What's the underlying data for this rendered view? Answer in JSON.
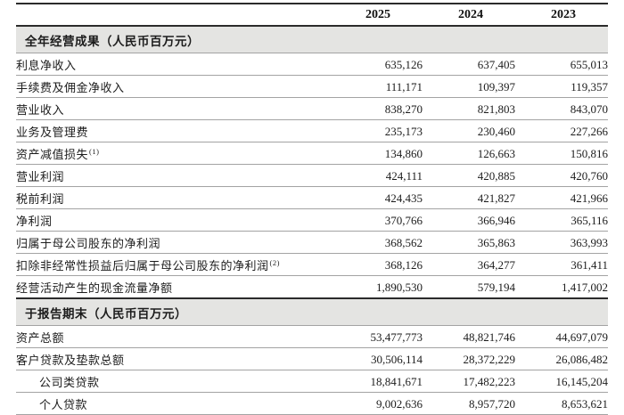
{
  "header": {
    "years": [
      "2025",
      "2024",
      "2023"
    ]
  },
  "sections": [
    {
      "title": "全年经营成果（人民币百万元）",
      "rows": [
        {
          "label": "利息净收入",
          "footnote": "",
          "indent": false,
          "values": [
            "635,126",
            "637,405",
            "655,013"
          ]
        },
        {
          "label": "手续费及佣金净收入",
          "footnote": "",
          "indent": false,
          "values": [
            "111,171",
            "109,397",
            "119,357"
          ]
        },
        {
          "label": "营业收入",
          "footnote": "",
          "indent": false,
          "values": [
            "838,270",
            "821,803",
            "843,070"
          ]
        },
        {
          "label": "业务及管理费",
          "footnote": "",
          "indent": false,
          "values": [
            "235,173",
            "230,460",
            "227,266"
          ]
        },
        {
          "label": "资产减值损失",
          "footnote": "(1)",
          "indent": false,
          "values": [
            "134,860",
            "126,663",
            "150,816"
          ]
        },
        {
          "label": "营业利润",
          "footnote": "",
          "indent": false,
          "values": [
            "424,111",
            "420,885",
            "420,760"
          ]
        },
        {
          "label": "税前利润",
          "footnote": "",
          "indent": false,
          "values": [
            "424,435",
            "421,827",
            "421,966"
          ]
        },
        {
          "label": "净利润",
          "footnote": "",
          "indent": false,
          "values": [
            "370,766",
            "366,946",
            "365,116"
          ]
        },
        {
          "label": "归属于母公司股东的净利润",
          "footnote": "",
          "indent": false,
          "values": [
            "368,562",
            "365,863",
            "363,993"
          ]
        },
        {
          "label": "扣除非经常性损益后归属于母公司股东的净利润",
          "footnote": "(2)",
          "indent": false,
          "values": [
            "368,126",
            "364,277",
            "361,411"
          ]
        },
        {
          "label": "经营活动产生的现金流量净额",
          "footnote": "",
          "indent": false,
          "values": [
            "1,890,530",
            "579,194",
            "1,417,002"
          ]
        }
      ]
    },
    {
      "title": "于报告期末（人民币百万元）",
      "rows": [
        {
          "label": "资产总额",
          "footnote": "",
          "indent": false,
          "values": [
            "53,477,773",
            "48,821,746",
            "44,697,079"
          ]
        },
        {
          "label": "客户贷款及垫款总额",
          "footnote": "",
          "indent": false,
          "values": [
            "30,506,114",
            "28,372,229",
            "26,086,482"
          ]
        },
        {
          "label": "公司类贷款",
          "footnote": "",
          "indent": true,
          "values": [
            "18,841,671",
            "17,482,223",
            "16,145,204"
          ]
        },
        {
          "label": "个人贷款",
          "footnote": "",
          "indent": true,
          "values": [
            "9,002,636",
            "8,957,720",
            "8,653,621"
          ]
        }
      ]
    }
  ],
  "colors": {
    "section_band_bg": "#e4e4e2",
    "thick_rule": "#2b2b2b",
    "thin_rule": "#a3a3a3",
    "text": "#1c1c1c"
  }
}
